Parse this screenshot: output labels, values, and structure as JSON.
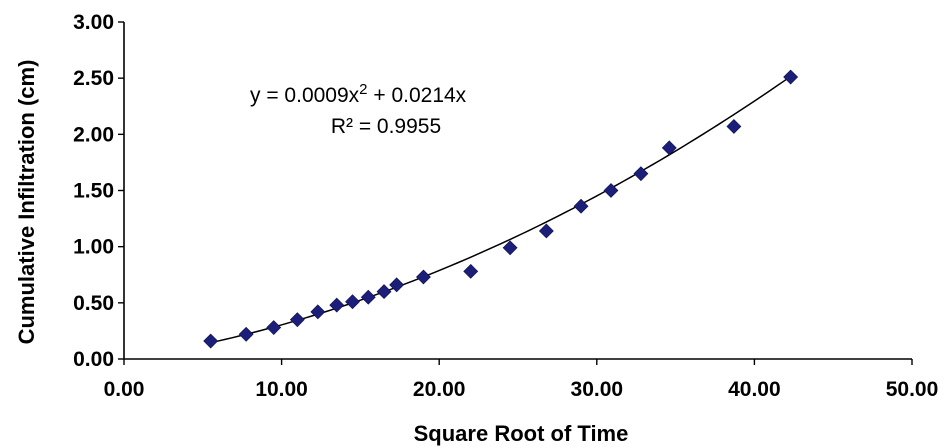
{
  "chart_data": {
    "type": "scatter",
    "title": "",
    "xlabel": "Square Root of Time",
    "ylabel": "Cumulative Infiltration (cm)",
    "xlim": [
      0,
      50
    ],
    "ylim": [
      0,
      3
    ],
    "xticks": [
      "0.00",
      "10.00",
      "20.00",
      "30.00",
      "40.00",
      "50.00"
    ],
    "yticks": [
      "0.00",
      "0.50",
      "1.00",
      "1.50",
      "2.00",
      "2.50",
      "3.00"
    ],
    "grid": false,
    "legend": "none",
    "marker_color": "#1b1f7a",
    "trendline_color": "#000000",
    "series": [
      {
        "x": [
          5.5,
          7.75,
          9.5,
          11.0,
          12.3,
          13.5,
          14.5,
          15.5,
          16.5,
          17.3,
          19.0,
          22.0,
          24.5,
          26.8,
          29.0,
          30.9,
          32.8,
          34.6,
          38.7,
          42.3
        ],
        "y": [
          0.16,
          0.22,
          0.28,
          0.35,
          0.42,
          0.48,
          0.51,
          0.55,
          0.6,
          0.66,
          0.73,
          0.78,
          0.99,
          1.14,
          1.36,
          1.5,
          1.65,
          1.88,
          2.07,
          2.51
        ]
      }
    ],
    "trendline": {
      "type": "polynomial",
      "a": 0.0009,
      "b": 0.0214,
      "c": 0,
      "x_range": [
        5.5,
        42.3
      ]
    },
    "annotations": {
      "equation_base": "y = 0.0009x",
      "equation_exp": "2",
      "equation_rest": " + 0.0214x",
      "r_squared": "R² = 0.9955"
    }
  }
}
